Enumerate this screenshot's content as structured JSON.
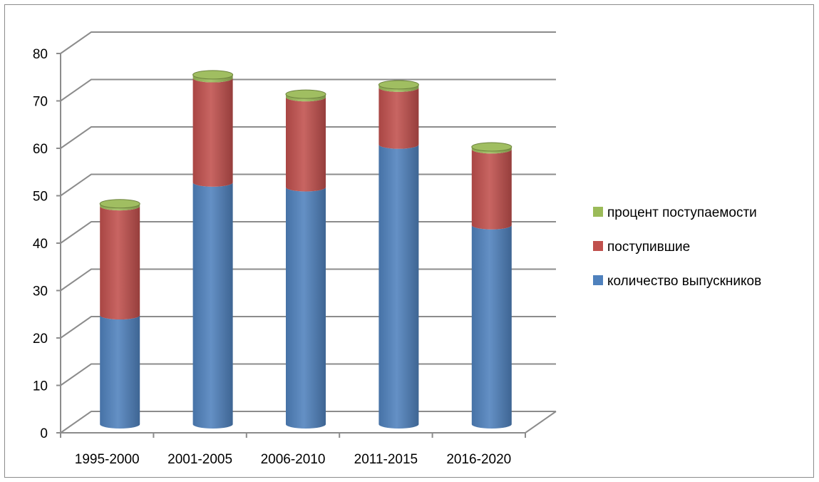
{
  "chart_data": {
    "type": "bar",
    "stacked": true,
    "style": "3d-cylinder",
    "categories": [
      "1995-2000",
      "2001-2005",
      "2006-2010",
      "2011-2015",
      "2016-2020"
    ],
    "series": [
      {
        "name": "количество выпускников",
        "color": "#4f81bd",
        "values": [
          23,
          51,
          50,
          59,
          42
        ]
      },
      {
        "name": "поступившие",
        "color": "#c0504d",
        "values": [
          23,
          22,
          19,
          12,
          16
        ]
      },
      {
        "name": "процент поступаемости",
        "color": "#9bbb59",
        "values": [
          0.5,
          0.7,
          0.6,
          0.6,
          0.5
        ]
      }
    ],
    "ylim": [
      0,
      80
    ],
    "yticks": [
      0,
      10,
      20,
      30,
      40,
      50,
      60,
      70,
      80
    ],
    "grid": true,
    "legend_position": "right",
    "title": "",
    "xlabel": "",
    "ylabel": ""
  }
}
